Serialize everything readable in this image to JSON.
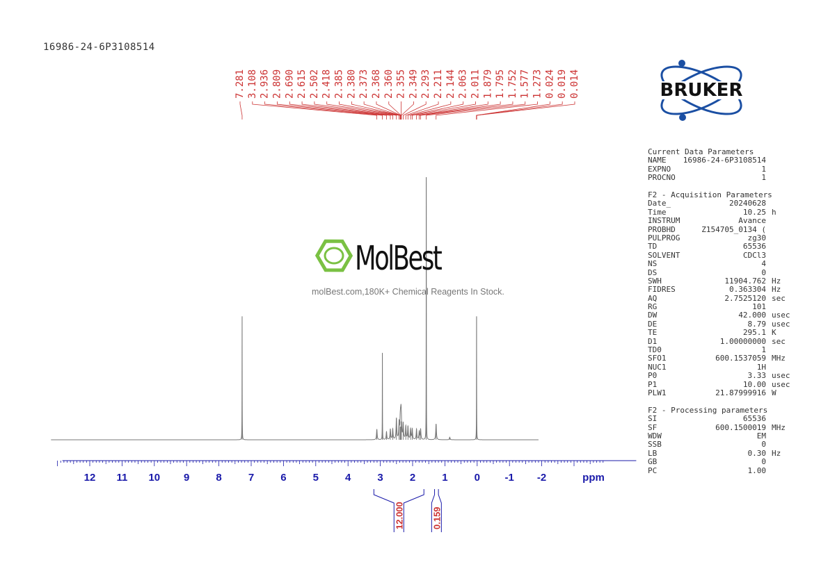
{
  "sample_id": "16986-24-6P3108514",
  "logo": {
    "text": "BRUKER",
    "colors": {
      "orbit": "#1b4fa3",
      "text": "#111111"
    }
  },
  "watermark": {
    "brand": "MolBest",
    "tagline": "molBest.com,180K+ Chemical Reagents In Stock.",
    "icon": "hexagon-benzene-icon",
    "icon_color": "#7ac143"
  },
  "parameters": {
    "current": {
      "title": "Current Data Parameters",
      "rows": [
        {
          "k": "NAME",
          "v": "16986-24-6P3108514",
          "u": ""
        },
        {
          "k": "EXPNO",
          "v": "1",
          "u": ""
        },
        {
          "k": "PROCNO",
          "v": "1",
          "u": ""
        }
      ]
    },
    "acquisition": {
      "title": "F2 - Acquisition Parameters",
      "rows": [
        {
          "k": "Date_",
          "v": "20240628",
          "u": ""
        },
        {
          "k": "Time",
          "v": "10.25",
          "u": "h"
        },
        {
          "k": "INSTRUM",
          "v": "Avance",
          "u": ""
        },
        {
          "k": "PROBHD",
          "v": "Z154705_0134 (",
          "u": ""
        },
        {
          "k": "PULPROG",
          "v": "zg30",
          "u": ""
        },
        {
          "k": "TD",
          "v": "65536",
          "u": ""
        },
        {
          "k": "SOLVENT",
          "v": "CDCl3",
          "u": ""
        },
        {
          "k": "NS",
          "v": "4",
          "u": ""
        },
        {
          "k": "DS",
          "v": "0",
          "u": ""
        },
        {
          "k": "SWH",
          "v": "11904.762",
          "u": "Hz"
        },
        {
          "k": "FIDRES",
          "v": "0.363304",
          "u": "Hz"
        },
        {
          "k": "AQ",
          "v": "2.7525120",
          "u": "sec"
        },
        {
          "k": "RG",
          "v": "101",
          "u": ""
        },
        {
          "k": "DW",
          "v": "42.000",
          "u": "usec"
        },
        {
          "k": "DE",
          "v": "8.79",
          "u": "usec"
        },
        {
          "k": "TE",
          "v": "295.1",
          "u": "K"
        },
        {
          "k": "D1",
          "v": "1.00000000",
          "u": "sec"
        },
        {
          "k": "TD0",
          "v": "1",
          "u": ""
        },
        {
          "k": "SFO1",
          "v": "600.1537059",
          "u": "MHz"
        },
        {
          "k": "NUC1",
          "v": "1H",
          "u": ""
        },
        {
          "k": "P0",
          "v": "3.33",
          "u": "usec"
        },
        {
          "k": "P1",
          "v": "10.00",
          "u": "usec"
        },
        {
          "k": "PLW1",
          "v": "21.87999916",
          "u": "W"
        }
      ]
    },
    "processing": {
      "title": "F2 - Processing parameters",
      "rows": [
        {
          "k": "SI",
          "v": "65536",
          "u": ""
        },
        {
          "k": "SF",
          "v": "600.1500019",
          "u": "MHz"
        },
        {
          "k": "WDW",
          "v": "EM",
          "u": ""
        },
        {
          "k": "SSB",
          "v": "0",
          "u": ""
        },
        {
          "k": "LB",
          "v": "0.30",
          "u": "Hz"
        },
        {
          "k": "GB",
          "v": "0",
          "u": ""
        },
        {
          "k": "PC",
          "v": "1.00",
          "u": ""
        }
      ]
    }
  },
  "chart_data": {
    "type": "line",
    "xlabel": "ppm",
    "xlim": [
      13.0,
      -4.0
    ],
    "x_reversed": true,
    "x_ticks": [
      12,
      11,
      10,
      9,
      8,
      7,
      6,
      5,
      4,
      3,
      2,
      1,
      0,
      -1,
      -2
    ],
    "x_tick_labels": [
      "12",
      "11",
      "10",
      "9",
      "8",
      "7",
      "6",
      "5",
      "4",
      "3",
      "2",
      "1",
      "0",
      "-1",
      "-2"
    ],
    "ylim": [
      0,
      1
    ],
    "colors": {
      "axis": "#1a1aaa",
      "trace": "#777777",
      "peak_labels": "#cc3333"
    },
    "peak_labels": [
      "7.281",
      "3.108",
      "2.936",
      "2.809",
      "2.690",
      "2.615",
      "2.502",
      "2.418",
      "2.385",
      "2.380",
      "2.373",
      "2.368",
      "2.360",
      "2.355",
      "2.349",
      "2.293",
      "2.211",
      "2.144",
      "2.063",
      "2.011",
      "1.879",
      "1.795",
      "1.752",
      "1.577",
      "1.273",
      "0.024",
      "0.019",
      "0.014"
    ],
    "peaks": [
      {
        "x": 7.281,
        "y": 0.47
      },
      {
        "x": 3.108,
        "y": 0.04
      },
      {
        "x": 2.936,
        "y": 0.33
      },
      {
        "x": 2.809,
        "y": 0.03
      },
      {
        "x": 2.69,
        "y": 0.04
      },
      {
        "x": 2.615,
        "y": 0.04
      },
      {
        "x": 2.502,
        "y": 0.08
      },
      {
        "x": 2.418,
        "y": 0.06
      },
      {
        "x": 2.385,
        "y": 0.05
      },
      {
        "x": 2.373,
        "y": 0.05
      },
      {
        "x": 2.36,
        "y": 0.07
      },
      {
        "x": 2.349,
        "y": 0.05
      },
      {
        "x": 2.293,
        "y": 0.06
      },
      {
        "x": 2.211,
        "y": 0.05
      },
      {
        "x": 2.144,
        "y": 0.05
      },
      {
        "x": 2.063,
        "y": 0.04
      },
      {
        "x": 2.011,
        "y": 0.04
      },
      {
        "x": 1.879,
        "y": 0.04
      },
      {
        "x": 1.795,
        "y": 0.03
      },
      {
        "x": 1.752,
        "y": 0.04
      },
      {
        "x": 1.577,
        "y": 1.0
      },
      {
        "x": 1.273,
        "y": 0.06
      },
      {
        "x": 0.85,
        "y": 0.01
      },
      {
        "x": 0.019,
        "y": 0.47
      }
    ],
    "integrals": [
      {
        "from": 3.2,
        "to": 1.65,
        "label": "12.000"
      },
      {
        "from": 1.32,
        "to": 1.2,
        "label": "0.159"
      }
    ]
  }
}
